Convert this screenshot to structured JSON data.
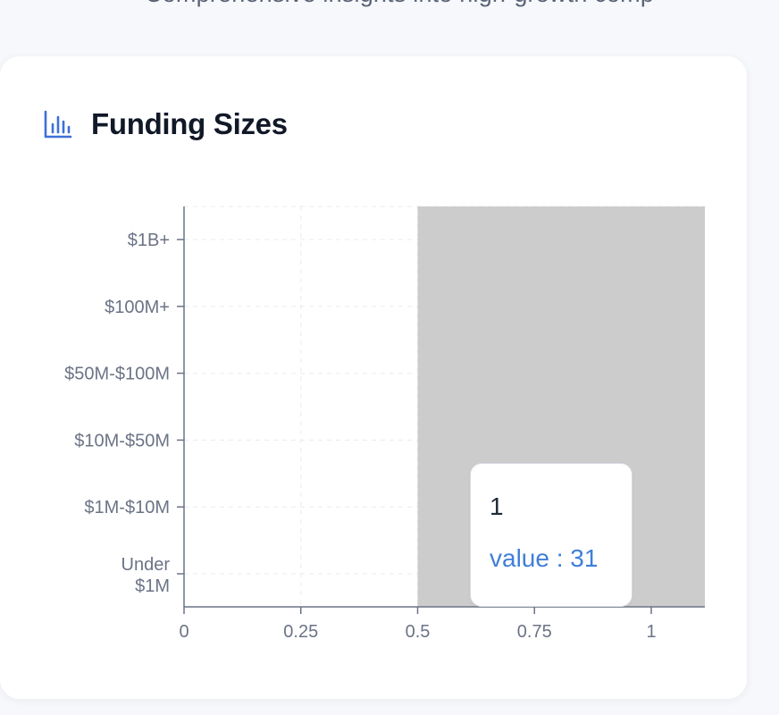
{
  "page": {
    "subtitle": "Comprehensive insights into high-growth comp"
  },
  "card": {
    "title": "Funding Sizes",
    "icon": "bar-chart-icon"
  },
  "colors": {
    "accent": "#3f6fd8",
    "bar": "#cccccc",
    "axis": "#6b7385",
    "grid": "#e8ebf0",
    "tooltip_value": "#3f7fd8"
  },
  "chart_data": {
    "type": "bar",
    "orientation": "horizontal",
    "categories": [
      "$1B+",
      "$100M+",
      "$50M-$100M",
      "$10M-$50M",
      "$1M-$10M",
      "Under $1M"
    ],
    "x_ticks": [
      "0",
      "0.25",
      "0.5",
      "0.75",
      "1"
    ],
    "xlim": [
      0,
      1
    ],
    "grid": true,
    "highlight": {
      "x_range": [
        0.5,
        1.1
      ],
      "category": "Under $1M",
      "series_value": 31
    },
    "tooltip": {
      "label": "1",
      "value_text": "value : 31"
    }
  }
}
